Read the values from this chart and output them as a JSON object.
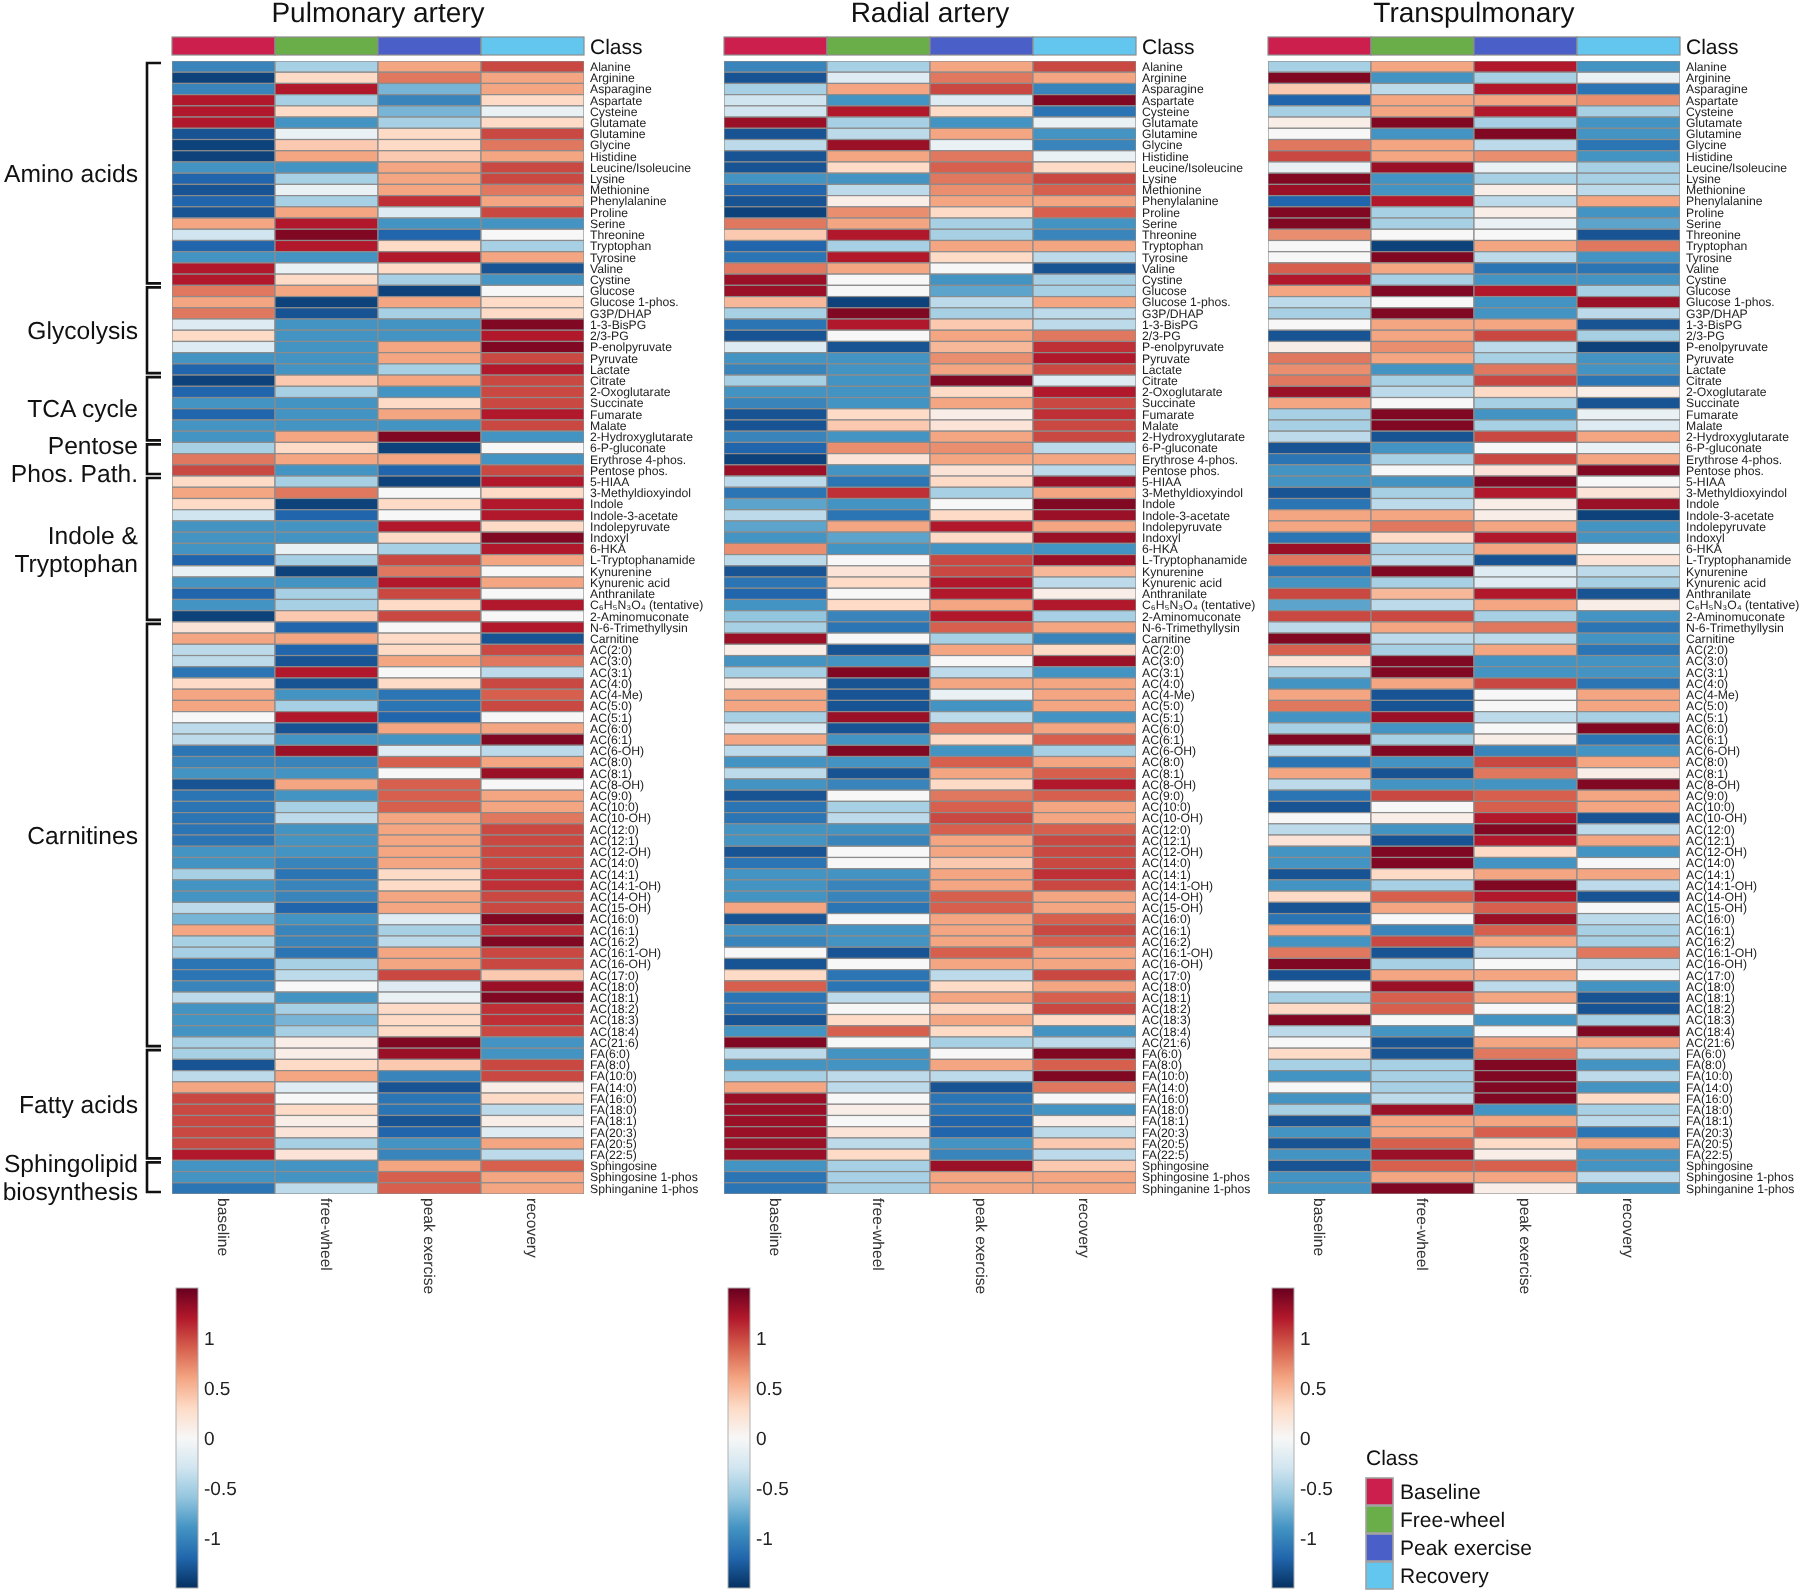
{
  "chart_data": [
    {
      "type": "heatmap",
      "title": "Pulmonary artery",
      "categories": [
        "baseline",
        "free-wheel",
        "peak exercise",
        "recovery"
      ],
      "colors": [
        "#cc1f4e",
        "#6aae4a",
        "#4b5fc9",
        "#62c6ef"
      ],
      "annotations": [
        "Class",
        "Amino acids",
        "Glycolysis",
        "TCA cycle",
        "Pentose Phos. Path.",
        "Indole & Tryptophan",
        "Carnitines",
        "Fatty acids",
        "Sphingolipid biosynthesis"
      ],
      "y_categories": [
        "Alanine",
        "Arginine",
        "Asparagine",
        "Aspartate",
        "Cysteine",
        "Glutamate",
        "Glutamine",
        "Glycine",
        "Histidine",
        "Leucine/Isoleucine",
        "Lysine",
        "Methionine",
        "Phenylalanine",
        "Proline",
        "Serine",
        "Threonine",
        "Tryptophan",
        "Tyrosine",
        "Valine",
        "Cystine",
        "Glucose",
        "Glucose 1-phos.",
        "G3P/DHAP",
        "1-3-BisPG",
        "2/3-PG",
        "P-enolpyruvate",
        "Pyruvate",
        "Lactate",
        "Citrate",
        "2-Oxoglutarate",
        "Succinate",
        "Fumarate",
        "Malate",
        "2-Hydroxyglutarate",
        "6-P-gluconate",
        "Erythrose 4-phos.",
        "Pentose phos.",
        "5-HIAA",
        "3-Methyldioxyindol",
        "Indole",
        "Indole-3-acetate",
        "Indolepyruvate",
        "Indoxyl",
        "6-HKA",
        "L-Tryptophanamide",
        "Kynurenine",
        "Kynurenic acid",
        "Anthranilate",
        "C₆H₅N₃O₄ (tentative)",
        "2-Aminomuconate",
        "N-6-Trimethyllysin",
        "Carnitine",
        "AC(2:0)",
        "AC(3:0)",
        "AC(3:1)",
        "AC(4:0)",
        "AC(4-Me)",
        "AC(5:0)",
        "AC(5:1)",
        "AC(6:0)",
        "AC(6:1)",
        "AC(6-OH)",
        "AC(8:0)",
        "AC(8:1)",
        "AC(8-OH)",
        "AC(9:0)",
        "AC(10:0)",
        "AC(10-OH)",
        "AC(12:0)",
        "AC(12:1)",
        "AC(12-OH)",
        "AC(14:0)",
        "AC(14:1)",
        "AC(14:1-OH)",
        "AC(14-OH)",
        "AC(15-OH)",
        "AC(16:0)",
        "AC(16:1)",
        "AC(16:2)",
        "AC(16:1-OH)",
        "AC(16-OH)",
        "AC(17:0)",
        "AC(18:0)",
        "AC(18:1)",
        "AC(18:2)",
        "AC(18:3)",
        "AC(18:4)",
        "AC(21:6)",
        "FA(6:0)",
        "FA(8:0)",
        "FA(10:0)",
        "FA(14:0)",
        "FA(16:0)",
        "FA(18:0)",
        "FA(18:1)",
        "FA(20:3)",
        "FA(20:5)",
        "FA(22:5)",
        "Sphingosine",
        "Sphingosine 1-phos",
        "Sphinganine 1-phos"
      ],
      "cells": [
        [
          -1.0,
          -0.5,
          0.6,
          1.0
        ],
        [
          -1.4,
          0.3,
          0.8,
          0.6
        ],
        [
          -1.0,
          1.2,
          -0.7,
          0.6
        ],
        [
          1.2,
          -0.5,
          -1.0,
          0.3
        ],
        [
          1.2,
          0.3,
          -0.7,
          -0.1
        ],
        [
          1.2,
          -0.9,
          -0.5,
          0.3
        ],
        [
          -1.3,
          -0.1,
          0.3,
          1.0
        ],
        [
          -1.4,
          0.4,
          0.3,
          0.8
        ],
        [
          -1.4,
          0.6,
          0.4,
          0.6
        ],
        [
          -0.9,
          -0.9,
          0.6,
          1.0
        ],
        [
          -1.2,
          -0.5,
          0.6,
          1.0
        ],
        [
          -1.3,
          -0.1,
          0.6,
          0.8
        ],
        [
          -1.2,
          -0.5,
          1.1,
          0.6
        ],
        [
          -1.3,
          0.6,
          -0.2,
          1.0
        ],
        [
          0.6,
          1.2,
          -0.9,
          -0.9
        ],
        [
          -0.3,
          1.4,
          -1.2,
          0.0
        ],
        [
          -1.2,
          1.2,
          0.3,
          -0.5
        ],
        [
          -0.9,
          -0.9,
          1.2,
          0.6
        ],
        [
          1.2,
          -0.1,
          0.3,
          -1.3
        ],
        [
          1.2,
          0.3,
          -0.5,
          -0.9
        ],
        [
          0.8,
          0.6,
          -1.4,
          0.0
        ],
        [
          0.6,
          -1.4,
          0.6,
          0.3
        ],
        [
          0.8,
          -1.3,
          -0.5,
          0.3
        ],
        [
          -0.2,
          -0.9,
          -0.9,
          1.4
        ],
        [
          0.3,
          -0.9,
          -0.9,
          1.2
        ],
        [
          -0.2,
          -0.9,
          0.6,
          1.4
        ],
        [
          -0.9,
          -0.9,
          0.6,
          1.0
        ],
        [
          -1.2,
          -0.9,
          -0.5,
          1.2
        ],
        [
          -1.4,
          0.4,
          0.6,
          1.0
        ],
        [
          -1.2,
          -0.5,
          -0.9,
          1.0
        ],
        [
          -0.9,
          -0.9,
          0.3,
          1.0
        ],
        [
          -1.2,
          -0.9,
          0.6,
          1.2
        ],
        [
          -0.9,
          -0.9,
          -0.9,
          1.0
        ],
        [
          -0.9,
          0.6,
          1.4,
          -0.9
        ],
        [
          -0.5,
          0.3,
          -1.4,
          0.0
        ],
        [
          0.8,
          0.6,
          0.6,
          -0.9
        ],
        [
          1.0,
          -0.9,
          -1.2,
          1.0
        ],
        [
          0.3,
          -0.5,
          -1.4,
          1.2
        ],
        [
          0.6,
          0.8,
          0.0,
          0.3
        ],
        [
          0.3,
          -1.4,
          0.3,
          1.2
        ],
        [
          -0.3,
          -1.2,
          0.0,
          1.2
        ],
        [
          -0.9,
          -0.9,
          1.2,
          0.3
        ],
        [
          -0.9,
          -0.9,
          0.3,
          1.4
        ],
        [
          -0.9,
          -0.1,
          -0.5,
          1.2
        ],
        [
          -1.2,
          -0.5,
          1.0,
          0.6
        ],
        [
          -0.1,
          -1.4,
          0.8,
          0.0
        ],
        [
          -0.9,
          -0.9,
          1.2,
          0.6
        ],
        [
          -1.2,
          -0.5,
          1.0,
          0.0
        ],
        [
          -0.9,
          -0.5,
          0.3,
          1.2
        ],
        [
          -1.4,
          0.4,
          1.0,
          0.0
        ],
        [
          0.2,
          -1.2,
          0.0,
          1.2
        ],
        [
          0.6,
          0.6,
          0.3,
          -1.3
        ],
        [
          -0.4,
          -1.2,
          0.3,
          1.0
        ],
        [
          -0.4,
          -1.3,
          0.6,
          0.8
        ],
        [
          -1.1,
          1.2,
          0.0,
          -0.4
        ],
        [
          0.3,
          -1.3,
          0.3,
          1.0
        ],
        [
          0.6,
          -0.9,
          -1.1,
          0.9
        ],
        [
          0.6,
          -0.5,
          -1.1,
          1.0
        ],
        [
          0.0,
          1.2,
          -1.2,
          0.0
        ],
        [
          -0.4,
          -1.3,
          0.6,
          0.6
        ],
        [
          -0.4,
          -0.9,
          -0.9,
          1.4
        ],
        [
          -1.1,
          1.3,
          -0.2,
          -0.4
        ],
        [
          -1.0,
          -1.0,
          0.9,
          0.6
        ],
        [
          -0.9,
          -0.9,
          0.0,
          1.3
        ],
        [
          -1.3,
          0.6,
          0.9,
          0.0
        ],
        [
          -1.1,
          -0.9,
          0.9,
          0.6
        ],
        [
          -1.1,
          -0.5,
          0.9,
          0.6
        ],
        [
          -1.1,
          -0.4,
          0.6,
          0.8
        ],
        [
          -1.1,
          -0.9,
          0.6,
          1.0
        ],
        [
          -1.1,
          -0.9,
          0.6,
          1.0
        ],
        [
          -0.9,
          -0.9,
          0.6,
          1.0
        ],
        [
          -0.9,
          -1.0,
          0.6,
          1.0
        ],
        [
          -0.5,
          -1.1,
          0.3,
          1.1
        ],
        [
          -0.9,
          -1.0,
          0.3,
          1.1
        ],
        [
          -0.9,
          -1.0,
          0.6,
          1.0
        ],
        [
          -0.4,
          -1.2,
          0.6,
          1.0
        ],
        [
          -0.7,
          -0.9,
          -0.2,
          1.4
        ],
        [
          0.6,
          -1.0,
          -0.5,
          1.1
        ],
        [
          -0.5,
          -1.0,
          -0.4,
          1.4
        ],
        [
          -0.5,
          -1.1,
          0.6,
          1.0
        ],
        [
          -1.1,
          -0.5,
          0.6,
          1.0
        ],
        [
          -1.1,
          -0.4,
          1.0,
          0.4
        ],
        [
          -1.0,
          0.0,
          -0.2,
          1.3
        ],
        [
          -0.4,
          -0.9,
          -0.1,
          1.4
        ],
        [
          -0.9,
          -0.5,
          0.3,
          1.1
        ],
        [
          -0.9,
          -0.7,
          0.3,
          1.1
        ],
        [
          -0.9,
          -0.5,
          0.3,
          1.0
        ],
        [
          -0.5,
          0.1,
          1.4,
          -0.9
        ],
        [
          -0.5,
          0.1,
          1.3,
          -0.9
        ],
        [
          -1.3,
          0.3,
          0.4,
          1.0
        ],
        [
          -0.4,
          0.6,
          -1.0,
          1.0
        ],
        [
          0.6,
          -0.2,
          -1.3,
          0.1
        ],
        [
          1.0,
          0.0,
          -1.1,
          0.3
        ],
        [
          1.0,
          0.3,
          -1.1,
          -0.4
        ],
        [
          1.0,
          0.1,
          -1.3,
          0.1
        ],
        [
          1.0,
          0.2,
          -1.2,
          -0.2
        ],
        [
          1.0,
          -0.5,
          -0.9,
          0.6
        ],
        [
          1.2,
          0.2,
          -1.0,
          -0.4
        ],
        [
          -0.9,
          -0.9,
          0.6,
          0.9
        ],
        [
          -0.9,
          -0.9,
          0.9,
          0.6
        ],
        [
          -1.1,
          -0.4,
          0.9,
          0.6
        ]
      ],
      "clim": [
        -1.5,
        1.5
      ],
      "cticks": [
        -1,
        -0.5,
        0,
        0.5,
        1
      ]
    },
    {
      "type": "heatmap",
      "title": "Radial artery",
      "categories": [
        "baseline",
        "free-wheel",
        "peak exercise",
        "recovery"
      ],
      "colors": [
        "#cc1f4e",
        "#6aae4a",
        "#4b5fc9",
        "#62c6ef"
      ],
      "annotations": [
        "Class"
      ],
      "y_categories": [
        "Alanine",
        "Arginine",
        "Asparagine",
        "Aspartate",
        "Cysteine",
        "Glutamate",
        "Glutamine",
        "Glycine",
        "Histidine",
        "Leucine/Isoleucine",
        "Lysine",
        "Methionine",
        "Phenylalanine",
        "Proline",
        "Serine",
        "Threonine",
        "Tryptophan",
        "Tyrosine",
        "Valine",
        "Cystine",
        "Glucose",
        "Glucose 1-phos.",
        "G3P/DHAP",
        "1-3-BisPG",
        "2/3-PG",
        "P-enolpyruvate",
        "Pyruvate",
        "Lactate",
        "Citrate",
        "2-Oxoglutarate",
        "Succinate",
        "Fumarate",
        "Malate",
        "2-Hydroxyglutarate",
        "6-P-gluconate",
        "Erythrose 4-phos.",
        "Pentose phos.",
        "5-HIAA",
        "3-Methyldioxyindol",
        "Indole",
        "Indole-3-acetate",
        "Indolepyruvate",
        "Indoxyl",
        "6-HKA",
        "L-Tryptophanamide",
        "Kynurenine",
        "Kynurenic acid",
        "Anthranilate",
        "C₆H₅N₃O₄ (tentative)",
        "2-Aminomuconate",
        "N-6-Trimethyllysin",
        "Carnitine",
        "AC(2:0)",
        "AC(3:0)",
        "AC(3:1)",
        "AC(4:0)",
        "AC(4-Me)",
        "AC(5:0)",
        "AC(5:1)",
        "AC(6:0)",
        "AC(6:1)",
        "AC(6-OH)",
        "AC(8:0)",
        "AC(8:1)",
        "AC(8-OH)",
        "AC(9:0)",
        "AC(10:0)",
        "AC(10-OH)",
        "AC(12:0)",
        "AC(12:1)",
        "AC(12-OH)",
        "AC(14:0)",
        "AC(14:1)",
        "AC(14:1-OH)",
        "AC(14-OH)",
        "AC(15-OH)",
        "AC(16:0)",
        "AC(16:1)",
        "AC(16:2)",
        "AC(16:1-OH)",
        "AC(16-OH)",
        "AC(17:0)",
        "AC(18:0)",
        "AC(18:1)",
        "AC(18:2)",
        "AC(18:3)",
        "AC(18:4)",
        "AC(21:6)",
        "FA(6:0)",
        "FA(8:0)",
        "FA(10:0)",
        "FA(14:0)",
        "FA(16:0)",
        "FA(18:0)",
        "FA(18:1)",
        "FA(20:3)",
        "FA(20:5)",
        "FA(22:5)",
        "Sphingosine",
        "Sphingosine 1-phos",
        "Sphinganine 1-phos"
      ],
      "cells": [
        [
          -1.0,
          -0.5,
          0.6,
          1.0
        ],
        [
          -1.3,
          -0.2,
          0.8,
          0.6
        ],
        [
          -0.5,
          0.6,
          1.0,
          -1.0
        ],
        [
          -0.3,
          -0.9,
          -0.2,
          1.4
        ],
        [
          -0.3,
          1.2,
          0.3,
          -1.1
        ],
        [
          1.3,
          -0.5,
          -0.9,
          -0.1
        ],
        [
          -1.3,
          -0.4,
          0.6,
          -0.9
        ],
        [
          -0.4,
          1.3,
          -0.1,
          -1.0
        ],
        [
          -1.3,
          0.6,
          0.8,
          -0.1
        ],
        [
          -1.3,
          0.3,
          0.9,
          0.3
        ],
        [
          -0.9,
          -0.9,
          0.8,
          1.0
        ],
        [
          -1.2,
          -0.4,
          0.7,
          0.9
        ],
        [
          -1.3,
          0.1,
          0.6,
          0.6
        ],
        [
          -1.4,
          0.7,
          0.3,
          0.9
        ],
        [
          0.8,
          0.6,
          -0.5,
          -0.9
        ],
        [
          0.4,
          1.2,
          -0.5,
          -1.0
        ],
        [
          -1.2,
          -0.5,
          0.6,
          0.6
        ],
        [
          -1.1,
          1.2,
          0.3,
          -0.4
        ],
        [
          0.8,
          0.6,
          0.0,
          -1.3
        ],
        [
          1.3,
          0.0,
          -0.9,
          -0.5
        ],
        [
          1.3,
          0.0,
          -0.8,
          -0.5
        ],
        [
          0.5,
          -1.4,
          -0.4,
          0.6
        ],
        [
          -0.5,
          1.4,
          -0.5,
          -0.4
        ],
        [
          -1.1,
          1.2,
          0.4,
          -0.4
        ],
        [
          -1.3,
          0.0,
          0.6,
          0.8
        ],
        [
          -0.2,
          -1.3,
          0.5,
          1.1
        ],
        [
          -0.9,
          -0.9,
          0.7,
          1.2
        ],
        [
          -1.0,
          -0.9,
          0.6,
          1.0
        ],
        [
          -0.5,
          -0.9,
          1.4,
          -0.2
        ],
        [
          -0.9,
          -0.9,
          0.3,
          1.2
        ],
        [
          -1.0,
          -0.9,
          0.6,
          1.0
        ],
        [
          -1.3,
          0.3,
          0.1,
          1.1
        ],
        [
          -1.3,
          0.4,
          0.2,
          1.0
        ],
        [
          -1.0,
          -0.9,
          0.6,
          1.0
        ],
        [
          -1.2,
          0.7,
          0.7,
          -0.4
        ],
        [
          -1.4,
          0.2,
          0.6,
          0.6
        ],
        [
          1.3,
          -0.9,
          0.2,
          -0.4
        ],
        [
          -0.4,
          -1.1,
          0.3,
          1.3
        ],
        [
          -1.1,
          1.1,
          -0.5,
          0.6
        ],
        [
          -0.8,
          -0.9,
          0.0,
          1.4
        ],
        [
          -0.4,
          -1.1,
          0.3,
          1.3
        ],
        [
          -0.8,
          0.6,
          1.2,
          0.6
        ],
        [
          -0.9,
          -0.8,
          0.3,
          1.3
        ],
        [
          0.7,
          -0.9,
          -0.9,
          -0.9
        ],
        [
          -0.4,
          0.0,
          1.0,
          1.3
        ],
        [
          -1.3,
          0.2,
          1.0,
          0.5
        ],
        [
          -1.1,
          0.3,
          1.2,
          -0.4
        ],
        [
          -1.2,
          0.0,
          1.2,
          0.1
        ],
        [
          -0.9,
          0.3,
          0.6,
          1.2
        ],
        [
          -0.6,
          -1.0,
          1.2,
          -0.5
        ],
        [
          -0.5,
          -1.1,
          0.9,
          0.6
        ],
        [
          1.3,
          0.0,
          -0.5,
          -1.0
        ],
        [
          0.1,
          -1.3,
          0.6,
          0.3
        ],
        [
          -0.9,
          -0.9,
          0.0,
          1.3
        ],
        [
          -0.5,
          1.4,
          -0.4,
          -0.9
        ],
        [
          0.1,
          -1.3,
          0.6,
          0.6
        ],
        [
          0.6,
          -1.3,
          -0.1,
          0.6
        ],
        [
          0.6,
          -1.3,
          -0.9,
          0.6
        ],
        [
          -0.5,
          1.3,
          -0.4,
          -0.9
        ],
        [
          -0.2,
          -1.3,
          0.8,
          0.6
        ],
        [
          0.6,
          -0.9,
          0.3,
          0.9
        ],
        [
          -0.4,
          1.4,
          -0.9,
          -0.5
        ],
        [
          -0.9,
          -0.9,
          0.9,
          0.6
        ],
        [
          -0.4,
          -1.3,
          0.6,
          0.9
        ],
        [
          -0.9,
          -1.0,
          0.3,
          1.2
        ],
        [
          -1.3,
          0.0,
          0.8,
          0.9
        ],
        [
          -1.1,
          -0.5,
          0.9,
          0.6
        ],
        [
          -1.1,
          -0.4,
          1.0,
          0.6
        ],
        [
          -0.9,
          -0.9,
          0.9,
          0.9
        ],
        [
          -0.9,
          -1.0,
          0.6,
          1.0
        ],
        [
          -1.3,
          0.0,
          0.6,
          1.0
        ],
        [
          -1.1,
          0.0,
          0.4,
          1.0
        ],
        [
          -0.9,
          -0.9,
          0.6,
          1.1
        ],
        [
          -0.9,
          -1.0,
          0.6,
          1.0
        ],
        [
          -0.9,
          -1.0,
          0.9,
          0.6
        ],
        [
          0.6,
          -1.1,
          0.9,
          0.6
        ],
        [
          -1.3,
          0.0,
          0.6,
          0.9
        ],
        [
          -0.9,
          -0.9,
          0.6,
          1.0
        ],
        [
          -1.0,
          -0.9,
          0.6,
          0.9
        ],
        [
          0.0,
          -1.3,
          0.9,
          0.6
        ],
        [
          -1.3,
          0.0,
          0.6,
          0.6
        ],
        [
          0.3,
          -1.1,
          -0.4,
          1.0
        ],
        [
          0.9,
          -1.1,
          0.3,
          0.6
        ],
        [
          -1.1,
          -0.4,
          0.6,
          0.9
        ],
        [
          -1.1,
          0.0,
          0.3,
          1.0
        ],
        [
          -1.3,
          0.3,
          0.6,
          0.3
        ],
        [
          -0.9,
          0.9,
          0.3,
          -0.9
        ],
        [
          1.4,
          0.0,
          -0.5,
          -0.4
        ],
        [
          -0.4,
          -0.9,
          0.0,
          1.4
        ],
        [
          -0.9,
          -0.9,
          0.6,
          0.9
        ],
        [
          -0.5,
          -0.4,
          -0.4,
          1.4
        ],
        [
          0.6,
          -0.4,
          -1.3,
          0.8
        ],
        [
          1.3,
          0.0,
          -1.1,
          0.0
        ],
        [
          1.3,
          0.1,
          -1.1,
          -0.9
        ],
        [
          1.3,
          0.0,
          -1.2,
          0.1
        ],
        [
          1.3,
          0.2,
          -1.2,
          -0.4
        ],
        [
          1.3,
          -0.4,
          -0.9,
          0.4
        ],
        [
          1.3,
          0.3,
          -1.0,
          -0.4
        ],
        [
          -0.9,
          -0.5,
          1.3,
          0.4
        ],
        [
          -1.1,
          -0.5,
          0.6,
          0.6
        ],
        [
          -1.1,
          -0.5,
          0.6,
          0.6
        ]
      ],
      "clim": [
        -1.5,
        1.5
      ],
      "cticks": [
        -1,
        -0.5,
        0,
        0.5,
        1
      ]
    },
    {
      "type": "heatmap",
      "title": "Transpulmonary",
      "categories": [
        "baseline",
        "free-wheel",
        "peak exercise",
        "recovery"
      ],
      "colors": [
        "#cc1f4e",
        "#6aae4a",
        "#4b5fc9",
        "#62c6ef"
      ],
      "annotations": [
        "Class"
      ],
      "y_categories": [
        "Alanine",
        "Arginine",
        "Asparagine",
        "Aspartate",
        "Cysteine",
        "Glutamate",
        "Glutamine",
        "Glycine",
        "Histidine",
        "Leucine/Isoleucine",
        "Lysine",
        "Methionine",
        "Phenylalanine",
        "Proline",
        "Serine",
        "Threonine",
        "Tryptophan",
        "Tyrosine",
        "Valine",
        "Cystine",
        "Glucose",
        "Glucose 1-phos.",
        "G3P/DHAP",
        "1-3-BisPG",
        "2/3-PG",
        "P-enolpyruvate",
        "Pyruvate",
        "Lactate",
        "Citrate",
        "2-Oxoglutarate",
        "Succinate",
        "Fumarate",
        "Malate",
        "2-Hydroxyglutarate",
        "6-P-gluconate",
        "Erythrose 4-phos.",
        "Pentose phos.",
        "5-HIAA",
        "3-Methyldioxyindol",
        "Indole",
        "Indole-3-acetate",
        "Indolepyruvate",
        "Indoxyl",
        "6-HKA",
        "L-Tryptophanamide",
        "Kynurenine",
        "Kynurenic acid",
        "Anthranilate",
        "C₆H₅N₃O₄ (tentative)",
        "2-Aminomuconate",
        "N-6-Trimethyllysin",
        "Carnitine",
        "AC(2:0)",
        "AC(3:0)",
        "AC(3:1)",
        "AC(4:0)",
        "AC(4-Me)",
        "AC(5:0)",
        "AC(5:1)",
        "AC(6:0)",
        "AC(6:1)",
        "AC(6-OH)",
        "AC(8:0)",
        "AC(8:1)",
        "AC(8-OH)",
        "AC(9:0)",
        "AC(10:0)",
        "AC(10-OH)",
        "AC(12:0)",
        "AC(12:1)",
        "AC(12-OH)",
        "AC(14:0)",
        "AC(14:1)",
        "AC(14:1-OH)",
        "AC(14-OH)",
        "AC(15-OH)",
        "AC(16:0)",
        "AC(16:1)",
        "AC(16:2)",
        "AC(16:1-OH)",
        "AC(16-OH)",
        "AC(17:0)",
        "AC(18:0)",
        "AC(18:1)",
        "AC(18:2)",
        "AC(18:3)",
        "AC(18:4)",
        "AC(21:6)",
        "FA(6:0)",
        "FA(8:0)",
        "FA(10:0)",
        "FA(14:0)",
        "FA(16:0)",
        "FA(18:0)",
        "FA(18:1)",
        "FA(20:3)",
        "FA(20:5)",
        "FA(22:5)",
        "Sphingosine",
        "Sphingosine 1-phos",
        "Sphinganine 1-phos"
      ],
      "cells": [
        [
          -0.5,
          0.6,
          1.2,
          -0.9
        ],
        [
          1.4,
          -0.9,
          -0.5,
          -0.1
        ],
        [
          0.4,
          -0.4,
          1.2,
          -1.1
        ],
        [
          -1.2,
          0.6,
          0.6,
          0.7
        ],
        [
          -0.5,
          0.6,
          1.2,
          -0.5
        ],
        [
          0.1,
          1.4,
          -0.5,
          -0.9
        ],
        [
          0.0,
          -0.9,
          1.4,
          -0.9
        ],
        [
          0.8,
          0.6,
          -0.4,
          -1.1
        ],
        [
          1.0,
          0.6,
          0.7,
          -0.9
        ],
        [
          -0.1,
          1.3,
          -0.1,
          -0.5
        ],
        [
          1.4,
          -0.9,
          -0.5,
          -0.5
        ],
        [
          1.3,
          -0.9,
          0.1,
          -0.4
        ],
        [
          -1.2,
          1.2,
          -0.4,
          0.6
        ],
        [
          1.4,
          -0.5,
          0.1,
          -0.9
        ],
        [
          1.4,
          -0.5,
          -0.1,
          -0.8
        ],
        [
          0.7,
          0.0,
          0.0,
          -1.3
        ],
        [
          0.0,
          -1.4,
          0.6,
          0.8
        ],
        [
          0.0,
          1.4,
          -0.4,
          -0.9
        ],
        [
          0.9,
          0.6,
          -1.1,
          -1.1
        ],
        [
          1.2,
          -0.5,
          -0.9,
          -0.9
        ],
        [
          0.6,
          1.4,
          1.2,
          -0.5
        ],
        [
          -0.4,
          0.0,
          -0.9,
          1.3
        ],
        [
          -0.5,
          1.4,
          -0.9,
          -0.4
        ],
        [
          0.0,
          0.6,
          0.6,
          -1.3
        ],
        [
          -1.3,
          0.6,
          1.0,
          -0.5
        ],
        [
          0.1,
          0.7,
          -0.4,
          -1.4
        ],
        [
          0.8,
          0.6,
          -0.5,
          -0.9
        ],
        [
          0.7,
          -0.9,
          0.8,
          -0.9
        ],
        [
          0.8,
          -0.5,
          1.0,
          -1.1
        ],
        [
          1.3,
          -0.4,
          0.3,
          0.1
        ],
        [
          0.6,
          0.0,
          -0.5,
          -1.3
        ],
        [
          -0.5,
          1.4,
          -0.9,
          -0.1
        ],
        [
          -0.5,
          1.4,
          -0.5,
          -0.2
        ],
        [
          -0.4,
          -1.3,
          1.0,
          0.6
        ],
        [
          -1.3,
          -0.9,
          0.0,
          -0.1
        ],
        [
          -1.1,
          -0.5,
          1.0,
          0.6
        ],
        [
          -0.9,
          0.0,
          0.2,
          1.4
        ],
        [
          -0.9,
          -0.9,
          1.4,
          0.0
        ],
        [
          -1.3,
          -0.5,
          1.2,
          0.2
        ],
        [
          -1.1,
          -0.4,
          0.1,
          1.3
        ],
        [
          0.6,
          0.6,
          0.1,
          -1.4
        ],
        [
          0.6,
          0.8,
          0.6,
          -0.9
        ],
        [
          -1.1,
          0.3,
          1.2,
          -0.9
        ],
        [
          1.3,
          -0.5,
          0.6,
          0.0
        ],
        [
          0.8,
          -0.4,
          -1.3,
          0.2
        ],
        [
          -1.1,
          1.4,
          -0.2,
          -0.4
        ],
        [
          -0.9,
          -0.5,
          -0.2,
          -0.5
        ],
        [
          1.0,
          0.5,
          1.2,
          -1.3
        ],
        [
          -0.8,
          -0.4,
          0.6,
          0.1
        ],
        [
          1.0,
          1.0,
          -0.5,
          -0.9
        ],
        [
          -0.4,
          0.6,
          0.8,
          -1.1
        ],
        [
          1.4,
          -0.4,
          -0.4,
          -0.9
        ],
        [
          0.9,
          -0.5,
          0.6,
          -1.1
        ],
        [
          0.2,
          1.4,
          -0.9,
          -0.9
        ],
        [
          -0.5,
          1.4,
          -0.9,
          -0.9
        ],
        [
          -0.9,
          0.6,
          1.0,
          -1.1
        ],
        [
          0.6,
          -1.3,
          0.0,
          0.6
        ],
        [
          0.8,
          -1.3,
          0.0,
          0.6
        ],
        [
          -0.9,
          1.3,
          -0.4,
          -0.5
        ],
        [
          -0.5,
          -0.9,
          0.0,
          1.4
        ],
        [
          1.4,
          -0.5,
          0.1,
          -1.1
        ],
        [
          -0.4,
          1.4,
          -1.0,
          -0.9
        ],
        [
          -1.1,
          -0.9,
          1.0,
          0.6
        ],
        [
          0.6,
          -1.3,
          0.8,
          0.1
        ],
        [
          -0.4,
          -0.9,
          -0.9,
          1.4
        ],
        [
          -1.1,
          1.0,
          0.9,
          0.6
        ],
        [
          -1.3,
          0.0,
          0.9,
          0.6
        ],
        [
          0.0,
          0.1,
          1.2,
          -1.3
        ],
        [
          -0.4,
          -0.9,
          1.4,
          -0.4
        ],
        [
          0.2,
          -1.3,
          1.2,
          0.6
        ],
        [
          -0.9,
          1.4,
          0.3,
          -0.9
        ],
        [
          -0.9,
          1.4,
          -0.9,
          0.0
        ],
        [
          -1.3,
          0.3,
          0.6,
          0.6
        ],
        [
          -0.9,
          -0.5,
          1.4,
          -0.4
        ],
        [
          0.3,
          0.9,
          1.2,
          -1.3
        ],
        [
          -1.3,
          0.6,
          0.9,
          0.0
        ],
        [
          -1.1,
          0.0,
          1.3,
          -0.4
        ],
        [
          0.6,
          -1.0,
          0.9,
          -0.5
        ],
        [
          -0.9,
          1.0,
          0.6,
          -0.5
        ],
        [
          0.8,
          -1.3,
          -0.4,
          0.8
        ],
        [
          1.4,
          -0.5,
          0.0,
          -0.4
        ],
        [
          -1.3,
          0.6,
          0.6,
          0.0
        ],
        [
          0.0,
          1.3,
          -0.4,
          -0.9
        ],
        [
          -0.5,
          0.9,
          0.6,
          -1.3
        ],
        [
          0.3,
          0.9,
          0.0,
          -1.3
        ],
        [
          1.4,
          0.0,
          -0.9,
          -0.5
        ],
        [
          -0.4,
          -0.9,
          0.0,
          1.4
        ],
        [
          0.0,
          -1.3,
          0.6,
          0.6
        ],
        [
          0.3,
          -1.3,
          0.8,
          -0.4
        ],
        [
          -0.5,
          -0.5,
          1.4,
          -0.9
        ],
        [
          -0.9,
          -0.5,
          1.4,
          -0.4
        ],
        [
          0.0,
          -0.5,
          1.4,
          -0.9
        ],
        [
          -0.9,
          -0.4,
          1.4,
          0.3
        ],
        [
          -0.5,
          1.3,
          -0.9,
          -0.5
        ],
        [
          -1.3,
          0.6,
          0.6,
          -0.4
        ],
        [
          -0.9,
          0.6,
          0.9,
          -1.1
        ],
        [
          -1.3,
          0.9,
          0.3,
          0.6
        ],
        [
          -0.9,
          1.3,
          0.1,
          -0.9
        ],
        [
          -1.3,
          0.9,
          0.9,
          -0.9
        ],
        [
          -0.9,
          0.6,
          0.6,
          -0.4
        ],
        [
          -0.9,
          1.4,
          0.1,
          -0.9
        ]
      ],
      "clim": [
        -1.5,
        1.5
      ],
      "cticks": [
        -1,
        -0.5,
        0,
        0.5,
        1
      ]
    },
    {
      "type": "other",
      "legend_title": "Class",
      "categories": [
        "Baseline",
        "Free-wheel",
        "Peak exercise",
        "Recovery"
      ],
      "colors": [
        "#cc1f4e",
        "#6aae4a",
        "#4b5fc9",
        "#62c6ef"
      ]
    }
  ]
}
